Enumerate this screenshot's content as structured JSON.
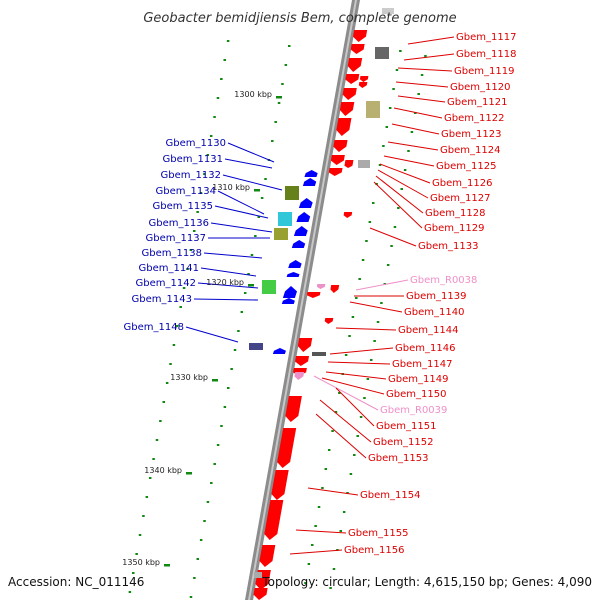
{
  "title": "Geobacter bemidjiensis Bem, complete genome",
  "footer": {
    "accession": "Accession: NC_011146",
    "topology": "Topology: circular; Length: 4,615,150 bp; Genes: 4,090"
  },
  "colors": {
    "forward": "#ff0000",
    "reverse": "#0000ff",
    "rna": "#ee90c8",
    "other": "#888888",
    "backbone": "#8c8c8c",
    "ticks": "#118811"
  },
  "ticks": [
    "1300 kbp",
    "1310 kbp",
    "1320 kbp",
    "1330 kbp",
    "1340 kbp",
    "1350 kbp"
  ],
  "right_labels": [
    {
      "text": "Gbem_1117",
      "kind": "forward"
    },
    {
      "text": "Gbem_1118",
      "kind": "forward"
    },
    {
      "text": "Gbem_1119",
      "kind": "forward"
    },
    {
      "text": "Gbem_1120",
      "kind": "forward"
    },
    {
      "text": "Gbem_1121",
      "kind": "forward"
    },
    {
      "text": "Gbem_1122",
      "kind": "forward"
    },
    {
      "text": "Gbem_1123",
      "kind": "forward"
    },
    {
      "text": "Gbem_1124",
      "kind": "forward"
    },
    {
      "text": "Gbem_1125",
      "kind": "forward"
    },
    {
      "text": "Gbem_1126",
      "kind": "forward"
    },
    {
      "text": "Gbem_1127",
      "kind": "forward"
    },
    {
      "text": "Gbem_1128",
      "kind": "forward"
    },
    {
      "text": "Gbem_1129",
      "kind": "forward"
    },
    {
      "text": "Gbem_1133",
      "kind": "forward"
    },
    {
      "text": "Gbem_R0038",
      "kind": "rna"
    },
    {
      "text": "Gbem_1139",
      "kind": "forward"
    },
    {
      "text": "Gbem_1140",
      "kind": "forward"
    },
    {
      "text": "Gbem_1144",
      "kind": "forward"
    },
    {
      "text": "Gbem_1146",
      "kind": "forward"
    },
    {
      "text": "Gbem_1147",
      "kind": "forward"
    },
    {
      "text": "Gbem_1149",
      "kind": "forward"
    },
    {
      "text": "Gbem_1150",
      "kind": "forward"
    },
    {
      "text": "Gbem_R0039",
      "kind": "rna"
    },
    {
      "text": "Gbem_1151",
      "kind": "forward"
    },
    {
      "text": "Gbem_1152",
      "kind": "forward"
    },
    {
      "text": "Gbem_1153",
      "kind": "forward"
    },
    {
      "text": "Gbem_1154",
      "kind": "forward"
    },
    {
      "text": "Gbem_1155",
      "kind": "forward"
    },
    {
      "text": "Gbem_1156",
      "kind": "forward"
    }
  ],
  "left_labels": [
    {
      "text": "Gbem_1130",
      "kind": "reverse"
    },
    {
      "text": "Gbem_1131",
      "kind": "reverse"
    },
    {
      "text": "Gbem_1132",
      "kind": "reverse"
    },
    {
      "text": "Gbem_1134",
      "kind": "reverse"
    },
    {
      "text": "Gbem_1135",
      "kind": "reverse"
    },
    {
      "text": "Gbem_1136",
      "kind": "reverse"
    },
    {
      "text": "Gbem_1137",
      "kind": "reverse"
    },
    {
      "text": "Gbem_1138",
      "kind": "reverse"
    },
    {
      "text": "Gbem_1141",
      "kind": "reverse"
    },
    {
      "text": "Gbem_1142",
      "kind": "reverse"
    },
    {
      "text": "Gbem_1143",
      "kind": "reverse"
    },
    {
      "text": "Gbem_1148",
      "kind": "reverse"
    }
  ]
}
